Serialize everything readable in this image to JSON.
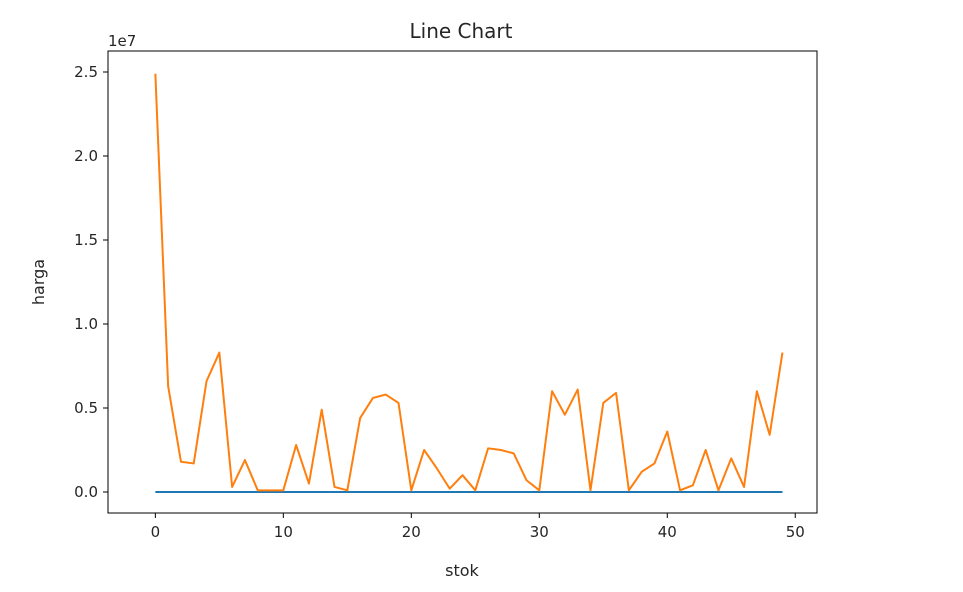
{
  "chart_data": {
    "type": "line",
    "title": "Line Chart",
    "xlabel": "stok",
    "ylabel": "harga",
    "offset_text": "1e7",
    "xlim": [
      -3.7,
      51.7
    ],
    "ylim": [
      -1250000,
      26250000
    ],
    "x_ticks": [
      {
        "value": 0,
        "label": "0"
      },
      {
        "value": 10,
        "label": "10"
      },
      {
        "value": 20,
        "label": "20"
      },
      {
        "value": 30,
        "label": "30"
      },
      {
        "value": 40,
        "label": "40"
      },
      {
        "value": 50,
        "label": "50"
      }
    ],
    "y_ticks": [
      {
        "value": 0,
        "label": "0.0"
      },
      {
        "value": 5000000,
        "label": "0.5"
      },
      {
        "value": 10000000,
        "label": "1.0"
      },
      {
        "value": 15000000,
        "label": "1.5"
      },
      {
        "value": 20000000,
        "label": "2.0"
      },
      {
        "value": 25000000,
        "label": "2.5"
      }
    ],
    "grid": false,
    "series": [
      {
        "color": "#1f77b4",
        "x": [
          0,
          1,
          2,
          3,
          4,
          5,
          6,
          7,
          8,
          9,
          10,
          11,
          12,
          13,
          14,
          15,
          16,
          17,
          18,
          19,
          20,
          21,
          22,
          23,
          24,
          25,
          26,
          27,
          28,
          29,
          30,
          31,
          32,
          33,
          34,
          35,
          36,
          37,
          38,
          39,
          40,
          41,
          42,
          43,
          44,
          45,
          46,
          47,
          48,
          49
        ],
        "y": [
          0,
          0,
          0,
          0,
          0,
          0,
          0,
          0,
          0,
          0,
          0,
          0,
          0,
          0,
          0,
          0,
          0,
          0,
          0,
          0,
          0,
          0,
          0,
          0,
          0,
          0,
          0,
          0,
          0,
          0,
          0,
          0,
          0,
          0,
          0,
          0,
          0,
          0,
          0,
          0,
          0,
          0,
          0,
          0,
          0,
          0,
          0,
          0,
          0,
          0
        ]
      },
      {
        "color": "#ff7f0e",
        "x": [
          0,
          1,
          2,
          3,
          4,
          5,
          6,
          7,
          8,
          9,
          10,
          11,
          12,
          13,
          14,
          15,
          16,
          17,
          18,
          19,
          20,
          21,
          22,
          23,
          24,
          25,
          26,
          27,
          28,
          29,
          30,
          31,
          32,
          33,
          34,
          35,
          36,
          37,
          38,
          39,
          40,
          41,
          42,
          43,
          44,
          45,
          46,
          47,
          48,
          49
        ],
        "y": [
          24900000,
          6300000,
          1800000,
          1700000,
          6600000,
          8300000,
          300000,
          1900000,
          100000,
          100000,
          100000,
          2800000,
          500000,
          4900000,
          300000,
          100000,
          4400000,
          5600000,
          5800000,
          5300000,
          100000,
          2500000,
          1400000,
          200000,
          1000000,
          100000,
          2600000,
          2500000,
          2300000,
          700000,
          100000,
          6000000,
          4600000,
          6100000,
          100000,
          5300000,
          5900000,
          100000,
          1200000,
          1700000,
          3600000,
          100000,
          400000,
          2500000,
          100000,
          2000000,
          300000,
          6000000,
          3400000,
          8300000
        ]
      }
    ]
  }
}
